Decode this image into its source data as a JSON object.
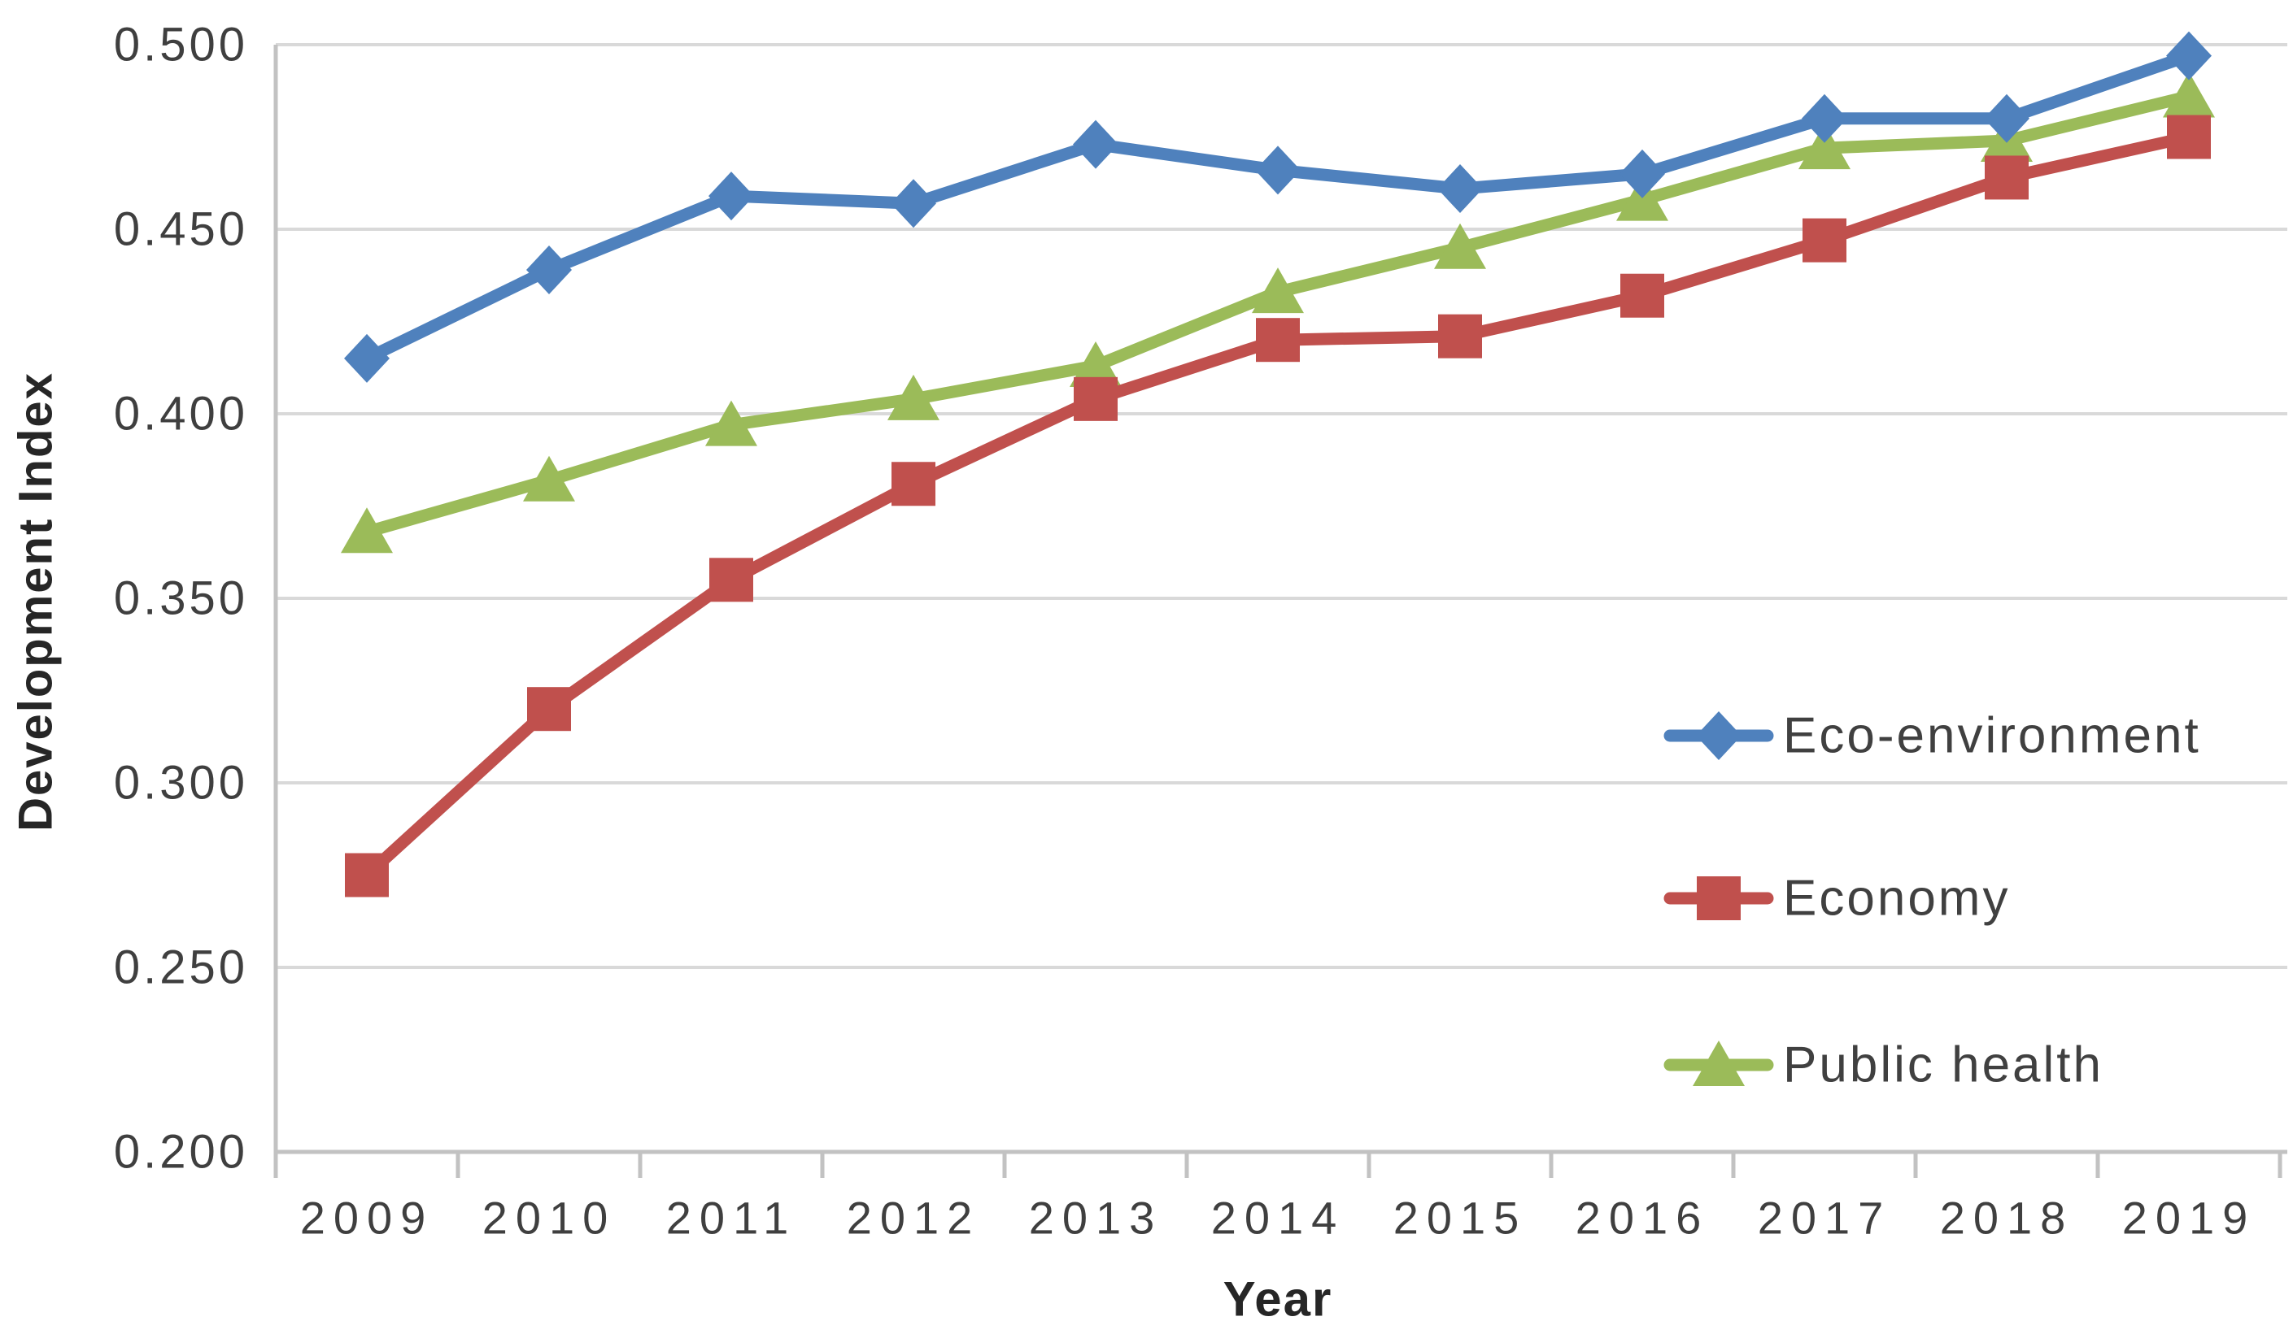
{
  "chart_data": {
    "type": "line",
    "title": "",
    "xlabel": "Year",
    "ylabel": "Development Index",
    "categories": [
      "2009",
      "2010",
      "2011",
      "2012",
      "2013",
      "2014",
      "2015",
      "2016",
      "2017",
      "2018",
      "2019"
    ],
    "series": [
      {
        "name": "Eco-environment",
        "marker": "diamond",
        "color": "#4f81bd",
        "values": [
          0.415,
          0.439,
          0.459,
          0.457,
          0.473,
          0.466,
          0.461,
          0.465,
          0.48,
          0.48,
          0.497
        ]
      },
      {
        "name": "Economy",
        "marker": "square",
        "color": "#c0504d",
        "values": [
          0.275,
          0.32,
          0.355,
          0.381,
          0.404,
          0.42,
          0.421,
          0.432,
          0.447,
          0.464,
          0.475
        ]
      },
      {
        "name": "Public health",
        "marker": "triangle",
        "color": "#9bbb59",
        "values": [
          0.368,
          0.382,
          0.397,
          0.404,
          0.413,
          0.433,
          0.445,
          0.458,
          0.472,
          0.474,
          0.486
        ]
      }
    ],
    "ylim": [
      0.2,
      0.5
    ],
    "ytick_step": 0.05,
    "ytick_labels": [
      "0.200",
      "0.250",
      "0.300",
      "0.350",
      "0.400",
      "0.450",
      "0.500"
    ],
    "grid": true,
    "legend_position": "right-middle"
  },
  "colors": {
    "grid": "#d9d9d9",
    "axis": "#c2c2c2",
    "tick_text": "#3f3f3f",
    "axis_title_text": "#262626",
    "legend_text": "#404040",
    "background": "#ffffff"
  }
}
